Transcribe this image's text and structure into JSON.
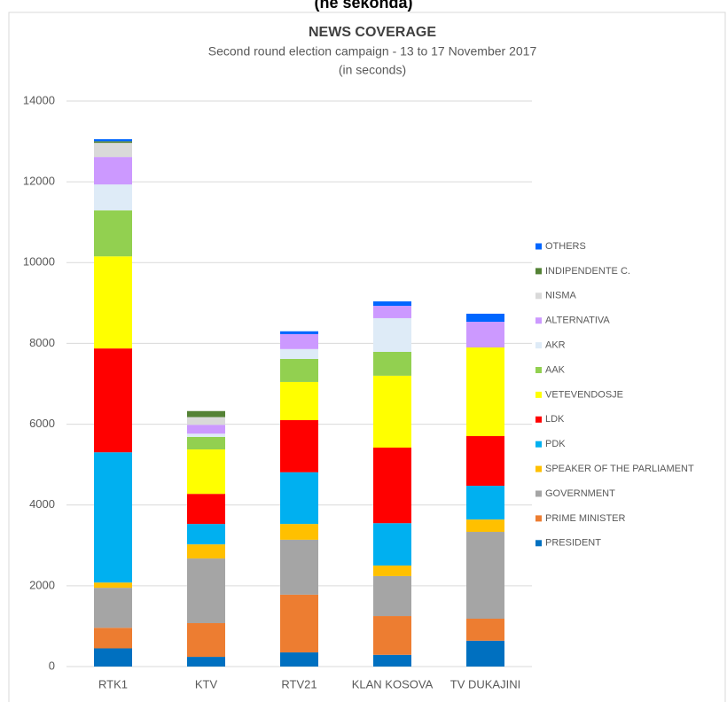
{
  "chart_data": {
    "type": "bar",
    "stacked": true,
    "header": "(në sekonda)",
    "title": "NEWS COVERAGE",
    "subtitle": "Second round election campaign - 13 to 17 November 2017",
    "subtitle2": "(in seconds)",
    "categories": [
      "RTK1",
      "KTV",
      "RTV21",
      "KLAN KOSOVA",
      "TV DUKAJINI"
    ],
    "ylim": [
      0,
      14000
    ],
    "yticks": [
      0,
      2000,
      4000,
      6000,
      8000,
      10000,
      12000,
      14000
    ],
    "grid": true,
    "legend": "right",
    "series": [
      {
        "name": "PRESIDENT",
        "color": "#0070c0",
        "values": [
          450,
          240,
          350,
          290,
          640
        ]
      },
      {
        "name": "PRIME MINISTER",
        "color": "#ed7d31",
        "values": [
          510,
          835,
          1430,
          960,
          545
        ]
      },
      {
        "name": "GOVERNMENT",
        "color": "#a5a5a5",
        "values": [
          990,
          1600,
          1360,
          990,
          2150
        ]
      },
      {
        "name": "SPEAKER OF THE PARLIAMENT",
        "color": "#ffc000",
        "values": [
          130,
          350,
          390,
          260,
          305
        ]
      },
      {
        "name": "PDK",
        "color": "#00b0f0",
        "values": [
          3225,
          505,
          1280,
          1050,
          835
        ]
      },
      {
        "name": "LDK",
        "color": "#ff0000",
        "values": [
          2570,
          745,
          1290,
          1870,
          1230
        ]
      },
      {
        "name": "VETEVENDOSJE",
        "color": "#ffff00",
        "values": [
          2280,
          1100,
          945,
          1780,
          2195
        ]
      },
      {
        "name": "AAK",
        "color": "#92d050",
        "values": [
          1140,
          310,
          570,
          590,
          0
        ]
      },
      {
        "name": "AKR",
        "color": "#deebf7",
        "values": [
          640,
          80,
          245,
          835,
          0
        ]
      },
      {
        "name": "ALTERNATIVA",
        "color": "#cc99ff",
        "values": [
          680,
          220,
          370,
          305,
          635
        ]
      },
      {
        "name": "NISMA",
        "color": "#d9d9d9",
        "values": [
          350,
          190,
          0,
          0,
          0
        ]
      },
      {
        "name": "INDIPENDENTE C.",
        "color": "#548235",
        "values": [
          40,
          150,
          0,
          0,
          0
        ]
      },
      {
        "name": "OTHERS",
        "color": "#0066ff",
        "values": [
          50,
          0,
          70,
          110,
          200
        ]
      }
    ]
  }
}
